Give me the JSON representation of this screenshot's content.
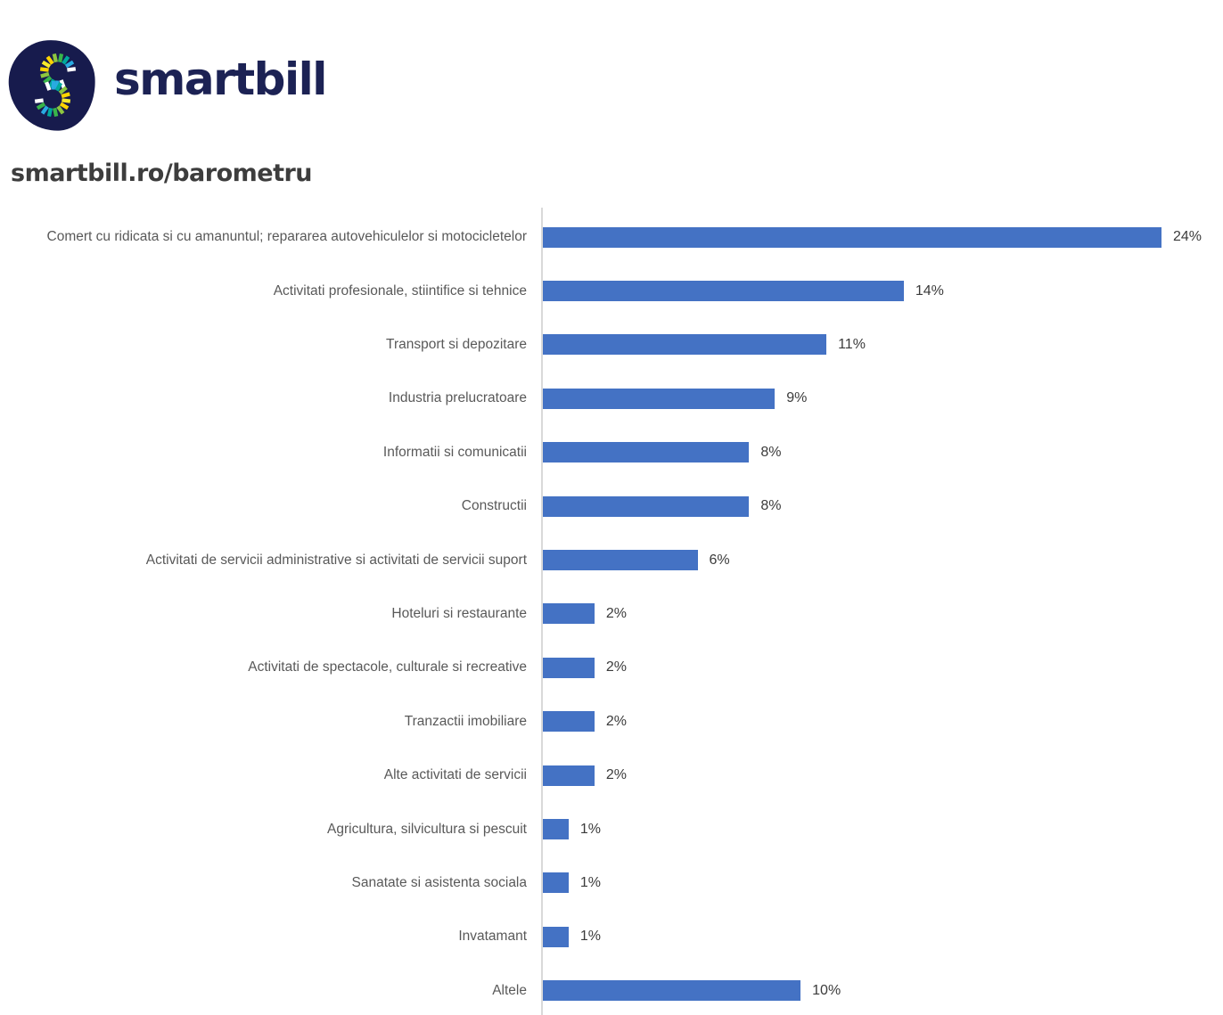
{
  "header": {
    "wordmark": "smartbill",
    "subtitle": "smartbill.ro/barometru",
    "brand_navy": "#1c2254",
    "logo_background": "#171b4d",
    "logo_dash_colors_top": [
      "#ffffff",
      "#29abe2",
      "#00a99d",
      "#39b54a",
      "#8dc63f",
      "#ffd400",
      "#f7ea2a",
      "#ffd400",
      "#8dc63f",
      "#39b54a",
      "#00a99d",
      "#29abe2",
      "#ffffff"
    ],
    "logo_dash_colors_bottom": [
      "#ffffff",
      "#29abe2",
      "#00a99d",
      "#8dc63f",
      "#ffd400",
      "#f7ea2a",
      "#ffd400",
      "#8dc63f",
      "#39b54a",
      "#00a99d",
      "#29abe2",
      "#39b54a",
      "#ffffff"
    ]
  },
  "chart_data": {
    "type": "bar",
    "orientation": "horizontal",
    "title": "",
    "xlabel": "",
    "ylabel": "",
    "categories": [
      "Comert cu ridicata si cu amanuntul; repararea autovehiculelor si motocicletelor",
      "Activitati profesionale, stiintifice si tehnice",
      "Transport si depozitare",
      "Industria prelucratoare",
      "Informatii si comunicatii",
      "Constructii",
      "Activitati de servicii administrative si activitati de servicii suport",
      "Hoteluri si restaurante",
      "Activitati de spectacole, culturale si recreative",
      "Tranzactii imobiliare",
      "Alte activitati de servicii",
      "Agricultura, silvicultura si pescuit",
      "Sanatate si asistenta sociala",
      "Invatamant",
      "Altele"
    ],
    "values": [
      24,
      14,
      11,
      9,
      8,
      8,
      6,
      2,
      2,
      2,
      2,
      1,
      1,
      1,
      10
    ],
    "value_labels": [
      "24%",
      "14%",
      "11%",
      "9%",
      "8%",
      "8%",
      "6%",
      "2%",
      "2%",
      "2%",
      "2%",
      "1%",
      "1%",
      "1%",
      "10%"
    ],
    "xlim": [
      0,
      24
    ],
    "grid": false,
    "legend": false,
    "bar_color": "#4472C4",
    "axis_line_color": "#D9D9D9",
    "category_label_color": "#595959",
    "value_label_color": "#3B3B3B"
  }
}
